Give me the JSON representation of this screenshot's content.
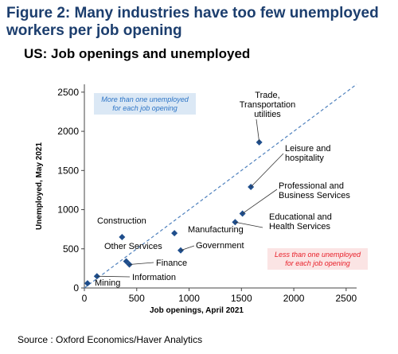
{
  "figure_title": "Figure 2: Many industries have too few unemployed workers per job opening",
  "source": "Source : Oxford Economics/Haver Analytics",
  "colors": {
    "title": "#1c3e6e",
    "marker": "#1f4e8c",
    "diagonal": "#4f81bd",
    "upper_box_bg": "#dbe8f5",
    "upper_box_text": "#2e75c6",
    "lower_box_bg": "#fbe4e4",
    "lower_box_text": "#e8202a"
  },
  "chart_data": {
    "type": "scatter",
    "title": "US: Job openings and unemployed",
    "xlabel": "Job openings, April 2021",
    "ylabel": "Unemployed, May 2021",
    "xlim": [
      0,
      2600
    ],
    "ylim": [
      0,
      2600
    ],
    "xticks": [
      "0",
      "500",
      "1000",
      "1500",
      "2000",
      "2500"
    ],
    "yticks": [
      "0",
      "500",
      "1000",
      "1500",
      "2000",
      "2500"
    ],
    "grid": false,
    "reference_line": "y = x",
    "annotations": [
      {
        "line1": "More than one unemployed",
        "line2": "for each job opening",
        "region": "upper-left"
      },
      {
        "line1": "Less than one unemployed",
        "line2": "for each job opening",
        "region": "lower-right"
      }
    ],
    "points": [
      {
        "label": "Trade, Transportation utilities",
        "label_lines": [
          "Trade,",
          "Transportation",
          "utilities"
        ],
        "x": 1670,
        "y": 1860
      },
      {
        "label": "Leisure and hospitality",
        "label_lines": [
          "Leisure and",
          "hospitality"
        ],
        "x": 1590,
        "y": 1290
      },
      {
        "label": "Professional and Business Services",
        "label_lines": [
          "Professional and",
          "Business Services"
        ],
        "x": 1510,
        "y": 950
      },
      {
        "label": "Educational and Health Services",
        "label_lines": [
          "Educational and",
          "Health Services"
        ],
        "x": 1440,
        "y": 840
      },
      {
        "label": "Construction",
        "label_lines": [
          "Construction"
        ],
        "x": 360,
        "y": 650
      },
      {
        "label": "Manufacturing",
        "label_lines": [
          "Manufacturing"
        ],
        "x": 860,
        "y": 700
      },
      {
        "label": "Government",
        "label_lines": [
          "Government"
        ],
        "x": 920,
        "y": 480
      },
      {
        "label": "Other Services",
        "label_lines": [
          "Other Services"
        ],
        "x": 400,
        "y": 340
      },
      {
        "label": "Finance",
        "label_lines": [
          "Finance"
        ],
        "x": 430,
        "y": 300
      },
      {
        "label": "Information",
        "label_lines": [
          "Information"
        ],
        "x": 120,
        "y": 150
      },
      {
        "label": "Mining",
        "label_lines": [
          "Mining"
        ],
        "x": 30,
        "y": 60
      }
    ]
  }
}
